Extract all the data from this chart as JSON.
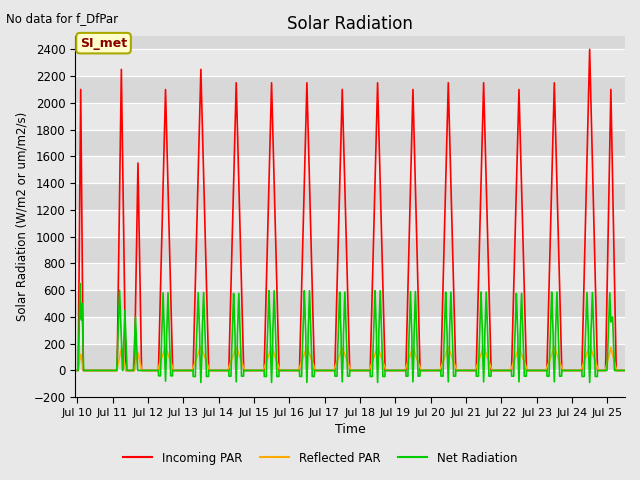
{
  "title": "Solar Radiation",
  "subtitle": "No data for f_DfPar",
  "xlabel": "Time",
  "ylabel": "Solar Radiation (W/m2 or um/m2/s)",
  "ylim": [
    -200,
    2500
  ],
  "yticks": [
    -200,
    0,
    200,
    400,
    600,
    800,
    1000,
    1200,
    1400,
    1600,
    1800,
    2000,
    2200,
    2400
  ],
  "xlim": [
    -0.05,
    15.5
  ],
  "xtick_labels": [
    "Jul 10",
    "Jul 11",
    "Jul 12",
    "Jul 13",
    "Jul 14",
    "Jul 15",
    "Jul 16",
    "Jul 17",
    "Jul 18",
    "Jul 19",
    "Jul 20",
    "Jul 21",
    "Jul 22",
    "Jul 23",
    "Jul 24",
    "Jul 25"
  ],
  "xtick_positions": [
    0,
    1,
    2,
    3,
    4,
    5,
    6,
    7,
    8,
    9,
    10,
    11,
    12,
    13,
    14,
    15
  ],
  "legend_box_label": "SI_met",
  "legend_box_color": "#ffffcc",
  "legend_box_border": "#aaa800",
  "fig_bg_color": "#e8e8e8",
  "plot_bg_color": "#d8d8d8",
  "grid_color": "#ffffff",
  "colors": {
    "incoming": "#ff0000",
    "reflected": "#ffaa00",
    "net": "#00cc00"
  },
  "legend_labels": [
    "Incoming PAR",
    "Reflected PAR",
    "Net Radiation"
  ]
}
